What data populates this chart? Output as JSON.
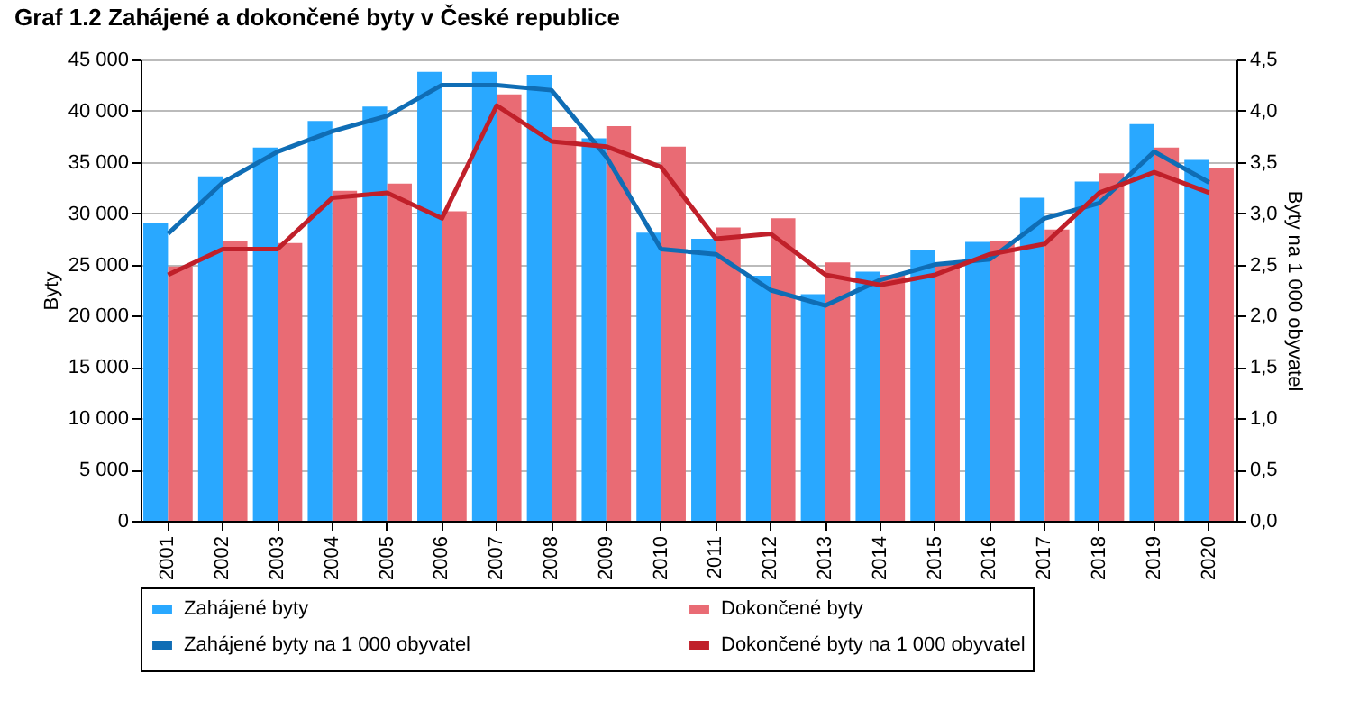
{
  "chart_data": {
    "type": "bar",
    "title": "Graf 1.2 Zahájené a dokončené byty v České republice",
    "ylabel": "Byty",
    "y2label": "Byty na 1 000 obyvatel",
    "categories": [
      "2001",
      "2002",
      "2003",
      "2004",
      "2005",
      "2006",
      "2007",
      "2008",
      "2009",
      "2010",
      "2011",
      "2012",
      "2013",
      "2014",
      "2015",
      "2016",
      "2017",
      "2018",
      "2019",
      "2020"
    ],
    "series": [
      {
        "name": "Zahájené byty",
        "color": "#29a8ff",
        "values": [
          29000,
          33600,
          36400,
          39000,
          40400,
          43800,
          43800,
          43500,
          37300,
          28100,
          27500,
          23900,
          22100,
          24300,
          26400,
          27200,
          31500,
          33100,
          38700,
          35200
        ]
      },
      {
        "name": "Dokončené byty",
        "color": "#e96b74",
        "values": [
          24800,
          27300,
          27100,
          32200,
          32900,
          30200,
          41600,
          38400,
          38500,
          36500,
          28600,
          29500,
          25200,
          24000,
          25100,
          27300,
          28400,
          33900,
          36400,
          34400
        ]
      },
      {
        "name": "Zahájené byty na 1 000 obyvatel",
        "type": "line",
        "axis": "y2",
        "color": "#0f6db5",
        "values": [
          2.8,
          3.3,
          3.6,
          3.8,
          3.95,
          4.25,
          4.25,
          4.2,
          3.55,
          2.65,
          2.6,
          2.25,
          2.1,
          2.35,
          2.5,
          2.55,
          2.95,
          3.1,
          3.6,
          3.3
        ]
      },
      {
        "name": "Dokončené byty na 1 000 obyvatel",
        "type": "line",
        "axis": "y2",
        "color": "#c0202a",
        "values": [
          2.4,
          2.65,
          2.65,
          3.15,
          3.2,
          2.95,
          4.05,
          3.7,
          3.65,
          3.45,
          2.75,
          2.8,
          2.4,
          2.3,
          2.4,
          2.6,
          2.7,
          3.2,
          3.4,
          3.2
        ]
      }
    ],
    "ylim": [
      0,
      45000
    ],
    "yticks": [
      0,
      {
        "value": 5000,
        "label": "5 000"
      },
      {
        "value": 10000,
        "label": "10 000"
      },
      {
        "value": 15000,
        "label": "15 000"
      },
      {
        "value": 20000,
        "label": "20 000"
      },
      {
        "value": 25000,
        "label": "25 000"
      },
      {
        "value": 30000,
        "label": "30 000"
      },
      {
        "value": 35000,
        "label": "35 000"
      },
      {
        "value": 40000,
        "label": "40 000"
      },
      {
        "value": 45000,
        "label": "45 000"
      }
    ],
    "y2lim": [
      0,
      4.5
    ],
    "y2ticks": [
      {
        "value": 0,
        "label": "0,0"
      },
      {
        "value": 0.5,
        "label": "0,5"
      },
      {
        "value": 1,
        "label": "1,0"
      },
      {
        "value": 1.5,
        "label": "1,5"
      },
      {
        "value": 2,
        "label": "2,0"
      },
      {
        "value": 2.5,
        "label": "2,5"
      },
      {
        "value": 3,
        "label": "3,0"
      },
      {
        "value": 3.5,
        "label": "3,5"
      },
      {
        "value": 4,
        "label": "4,0"
      },
      {
        "value": 4.5,
        "label": "4,5"
      }
    ],
    "grid": "y",
    "legend": "bottom",
    "line_style": "solid"
  }
}
